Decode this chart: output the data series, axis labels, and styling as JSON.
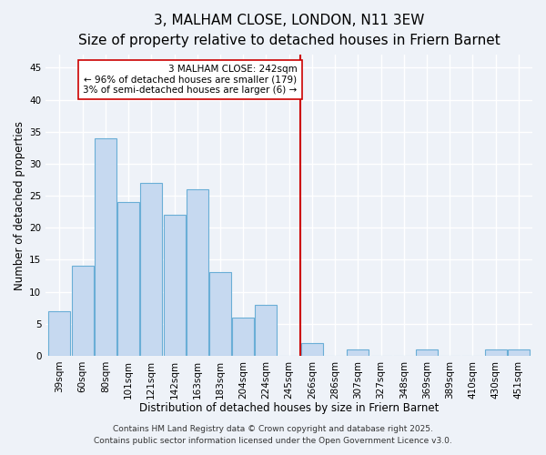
{
  "title": "3, MALHAM CLOSE, LONDON, N11 3EW",
  "subtitle": "Size of property relative to detached houses in Friern Barnet",
  "xlabel": "Distribution of detached houses by size in Friern Barnet",
  "ylabel": "Number of detached properties",
  "categories": [
    "39sqm",
    "60sqm",
    "80sqm",
    "101sqm",
    "121sqm",
    "142sqm",
    "163sqm",
    "183sqm",
    "204sqm",
    "224sqm",
    "245sqm",
    "266sqm",
    "286sqm",
    "307sqm",
    "327sqm",
    "348sqm",
    "369sqm",
    "389sqm",
    "410sqm",
    "430sqm",
    "451sqm"
  ],
  "values": [
    7,
    14,
    34,
    24,
    27,
    22,
    26,
    13,
    6,
    8,
    0,
    2,
    0,
    1,
    0,
    0,
    1,
    0,
    0,
    1,
    1
  ],
  "bar_color": "#c6d9f0",
  "bar_edge_color": "#6aaed6",
  "vline_color": "#cc0000",
  "annotation_title": "3 MALHAM CLOSE: 242sqm",
  "annotation_line1": "← 96% of detached houses are smaller (179)",
  "annotation_line2": "3% of semi-detached houses are larger (6) →",
  "annotation_box_color": "#ffffff",
  "annotation_box_edge": "#cc0000",
  "ylim": [
    0,
    47
  ],
  "yticks": [
    0,
    5,
    10,
    15,
    20,
    25,
    30,
    35,
    40,
    45
  ],
  "footer1": "Contains HM Land Registry data © Crown copyright and database right 2025.",
  "footer2": "Contains public sector information licensed under the Open Government Licence v3.0.",
  "background_color": "#eef2f8",
  "grid_color": "#ffffff",
  "title_fontsize": 11,
  "subtitle_fontsize": 9,
  "axis_label_fontsize": 8.5,
  "tick_fontsize": 7.5,
  "annotation_fontsize": 7.5,
  "footer_fontsize": 6.5
}
